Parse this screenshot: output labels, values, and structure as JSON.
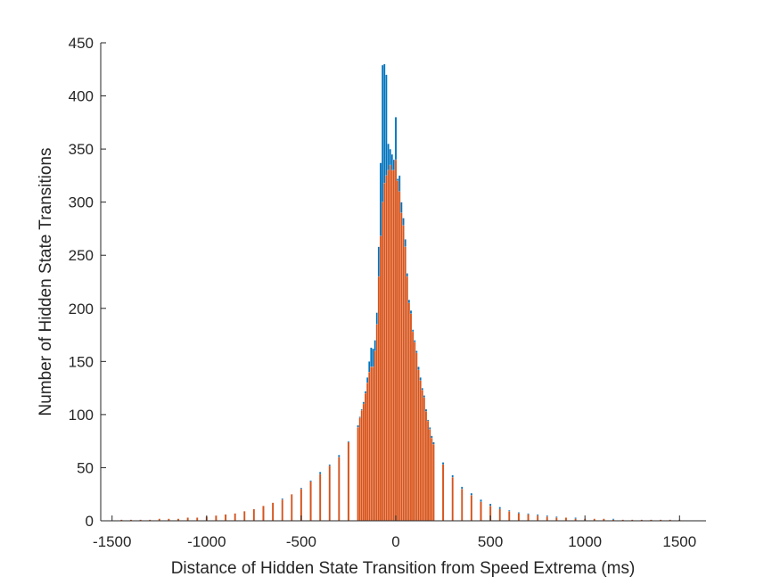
{
  "chart_data": {
    "type": "bar",
    "title": "",
    "xlabel": "Distance of Hidden State Transition from Speed Extrema (ms)",
    "ylabel": "Number of Hidden State Transitions",
    "xlim": [
      -1560,
      1640
    ],
    "ylim": [
      0,
      450
    ],
    "xticks": [
      -1500,
      -1000,
      -500,
      0,
      500,
      1000,
      1500
    ],
    "yticks": [
      0,
      50,
      100,
      150,
      200,
      250,
      300,
      350,
      400,
      450
    ],
    "xtick_labels": [
      "-1500",
      "-1000",
      "-500",
      "0",
      "500",
      "1000",
      "1500"
    ],
    "ytick_labels": [
      "0",
      "50",
      "100",
      "150",
      "200",
      "250",
      "300",
      "350",
      "400",
      "450"
    ],
    "grid": false,
    "box": false,
    "bin_width_ms": 10,
    "colors": {
      "series_1": "#0072BD",
      "series_2": "#D95319",
      "axis": "#262626"
    },
    "series": [
      {
        "color": "#0072BD",
        "x": [
          -1450,
          -1400,
          -1350,
          -1300,
          -1250,
          -1200,
          -1150,
          -1100,
          -1050,
          -1000,
          -950,
          -900,
          -850,
          -800,
          -750,
          -700,
          -650,
          -600,
          -550,
          -500,
          -450,
          -400,
          -350,
          -300,
          -250,
          -200,
          -190,
          -180,
          -170,
          -160,
          -150,
          -140,
          -130,
          -120,
          -110,
          -100,
          -90,
          -80,
          -70,
          -60,
          -50,
          -40,
          -30,
          -20,
          -10,
          0,
          10,
          20,
          30,
          40,
          50,
          60,
          70,
          80,
          90,
          100,
          110,
          120,
          130,
          140,
          150,
          160,
          170,
          180,
          190,
          200,
          250,
          300,
          350,
          400,
          450,
          500,
          550,
          600,
          650,
          700,
          750,
          800,
          850,
          900,
          950,
          1000,
          1050,
          1100,
          1150,
          1200,
          1250,
          1300,
          1350,
          1400,
          1450,
          1500
        ],
        "values": [
          1,
          1,
          1,
          1,
          2,
          2,
          2,
          3,
          3,
          4,
          5,
          6,
          7,
          9,
          11,
          14,
          17,
          21,
          25,
          31,
          38,
          46,
          53,
          62,
          75,
          90,
          98,
          105,
          112,
          122,
          135,
          150,
          163,
          162,
          170,
          196,
          258,
          337,
          429,
          430,
          420,
          355,
          350,
          345,
          340,
          380,
          322,
          325,
          300,
          285,
          265,
          233,
          208,
          198,
          180,
          170,
          160,
          145,
          135,
          125,
          118,
          105,
          95,
          88,
          80,
          74,
          55,
          43,
          32,
          26,
          20,
          16,
          13,
          10,
          8,
          7,
          6,
          5,
          4,
          3,
          3,
          2,
          2,
          2,
          2,
          1,
          1,
          1,
          1,
          1,
          1,
          1
        ]
      },
      {
        "color": "#D95319",
        "x": [
          -1450,
          -1400,
          -1350,
          -1300,
          -1250,
          -1200,
          -1150,
          -1100,
          -1050,
          -1000,
          -950,
          -900,
          -850,
          -800,
          -750,
          -700,
          -650,
          -600,
          -550,
          -500,
          -450,
          -400,
          -350,
          -300,
          -250,
          -200,
          -190,
          -180,
          -170,
          -160,
          -150,
          -140,
          -130,
          -120,
          -110,
          -100,
          -90,
          -80,
          -70,
          -60,
          -50,
          -40,
          -30,
          -20,
          -10,
          0,
          10,
          20,
          30,
          40,
          50,
          60,
          70,
          80,
          90,
          100,
          110,
          120,
          130,
          140,
          150,
          160,
          170,
          180,
          190,
          200,
          250,
          300,
          350,
          400,
          450,
          500,
          550,
          600,
          650,
          700,
          750,
          800,
          850,
          900,
          950,
          1000,
          1050,
          1100,
          1150,
          1200,
          1250,
          1300,
          1350,
          1400,
          1450,
          1500
        ],
        "values": [
          1,
          1,
          1,
          1,
          2,
          2,
          2,
          3,
          3,
          4,
          5,
          6,
          7,
          9,
          11,
          14,
          17,
          20,
          25,
          30,
          37,
          44,
          52,
          60,
          74,
          88,
          97,
          104,
          110,
          120,
          130,
          140,
          145,
          145,
          160,
          185,
          230,
          268,
          300,
          318,
          325,
          330,
          335,
          330,
          330,
          340,
          320,
          310,
          290,
          278,
          258,
          230,
          205,
          195,
          178,
          168,
          158,
          142,
          132,
          123,
          116,
          103,
          94,
          86,
          78,
          72,
          53,
          41,
          30,
          24,
          18,
          14,
          11,
          9,
          7,
          6,
          5,
          4,
          3,
          3,
          2,
          2,
          2,
          2,
          1,
          1,
          1,
          1,
          1,
          1,
          1,
          1
        ]
      }
    ]
  }
}
